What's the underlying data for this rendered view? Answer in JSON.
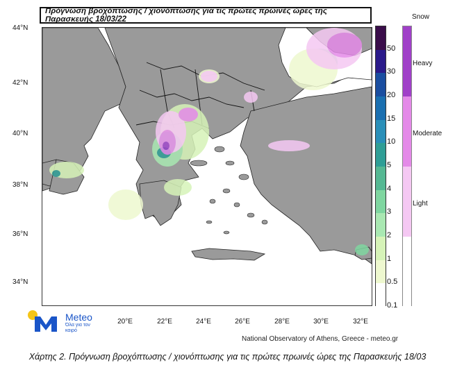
{
  "map": {
    "title": "Πρόγνωση βροχόπτωσης / χιονόπτωσης για τις πρώτες πρωινές ώρες της Παρασκευής 18/03/22",
    "lat_labels": [
      "44°N",
      "42°N",
      "40°N",
      "38°N",
      "36°N",
      "34°N"
    ],
    "lon_labels": [
      "20°E",
      "22°E",
      "24°E",
      "26°E",
      "28°E",
      "30°E",
      "32°E"
    ]
  },
  "rain_legend": {
    "labels": [
      "50",
      "30",
      "20",
      "15",
      "10",
      "5",
      "4",
      "3",
      "2",
      "1",
      "0.5",
      "0.1"
    ],
    "colors": [
      "#3a0d4a",
      "#2a1a8a",
      "#1a4ea0",
      "#1a6fb0",
      "#2a8fb8",
      "#2f9e96",
      "#55b893",
      "#7fd6a0",
      "#a9e8b2",
      "#d6f3b8",
      "#eef8cf",
      "#ffffff"
    ]
  },
  "snow_legend": {
    "title": "Snow",
    "categories": [
      "Heavy",
      "Moderate",
      "Light"
    ],
    "colors": [
      "#a040c8",
      "#e48ae8",
      "#f5c8f3"
    ]
  },
  "logo": {
    "name": "Meteo",
    "subtitle": "Όλα για τον καιρό"
  },
  "credit": "National Observatory of Athens, Greece - meteo.gr",
  "caption": "Χάρτης 2. Πρόγνωση βροχόπτωσης / χιονόπτωσης για τις πρώτες  πρωινές ώρες της Παρασκευής 18/03"
}
